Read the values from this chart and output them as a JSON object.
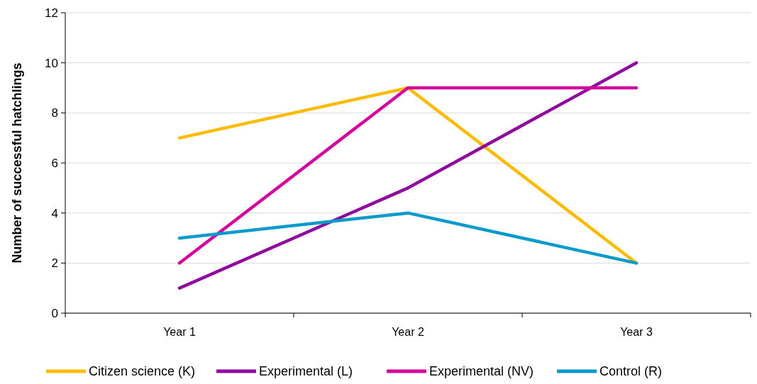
{
  "chart_data": {
    "type": "line",
    "ylabel": "Number of successful hatchlings",
    "categories": [
      "Year 1",
      "Year 2",
      "Year 3"
    ],
    "series": [
      {
        "name": "Citizen science (K)",
        "color": "#fbbb00",
        "values": [
          7,
          9,
          2
        ]
      },
      {
        "name": "Experimental (L)",
        "color": "#8e0b9e",
        "values": [
          1,
          5,
          10
        ]
      },
      {
        "name": "Experimental (NV)",
        "color": "#d4049c",
        "values": [
          2,
          9,
          9
        ]
      },
      {
        "name": "Control (R)",
        "color": "#0a9bcb",
        "values": [
          3,
          4,
          2
        ]
      }
    ],
    "ylim": [
      0,
      12
    ],
    "yticks": [
      0,
      2,
      4,
      6,
      8,
      10,
      12
    ],
    "grid": "y",
    "legend": "bottom",
    "marker": "none",
    "line_style": "solid"
  }
}
